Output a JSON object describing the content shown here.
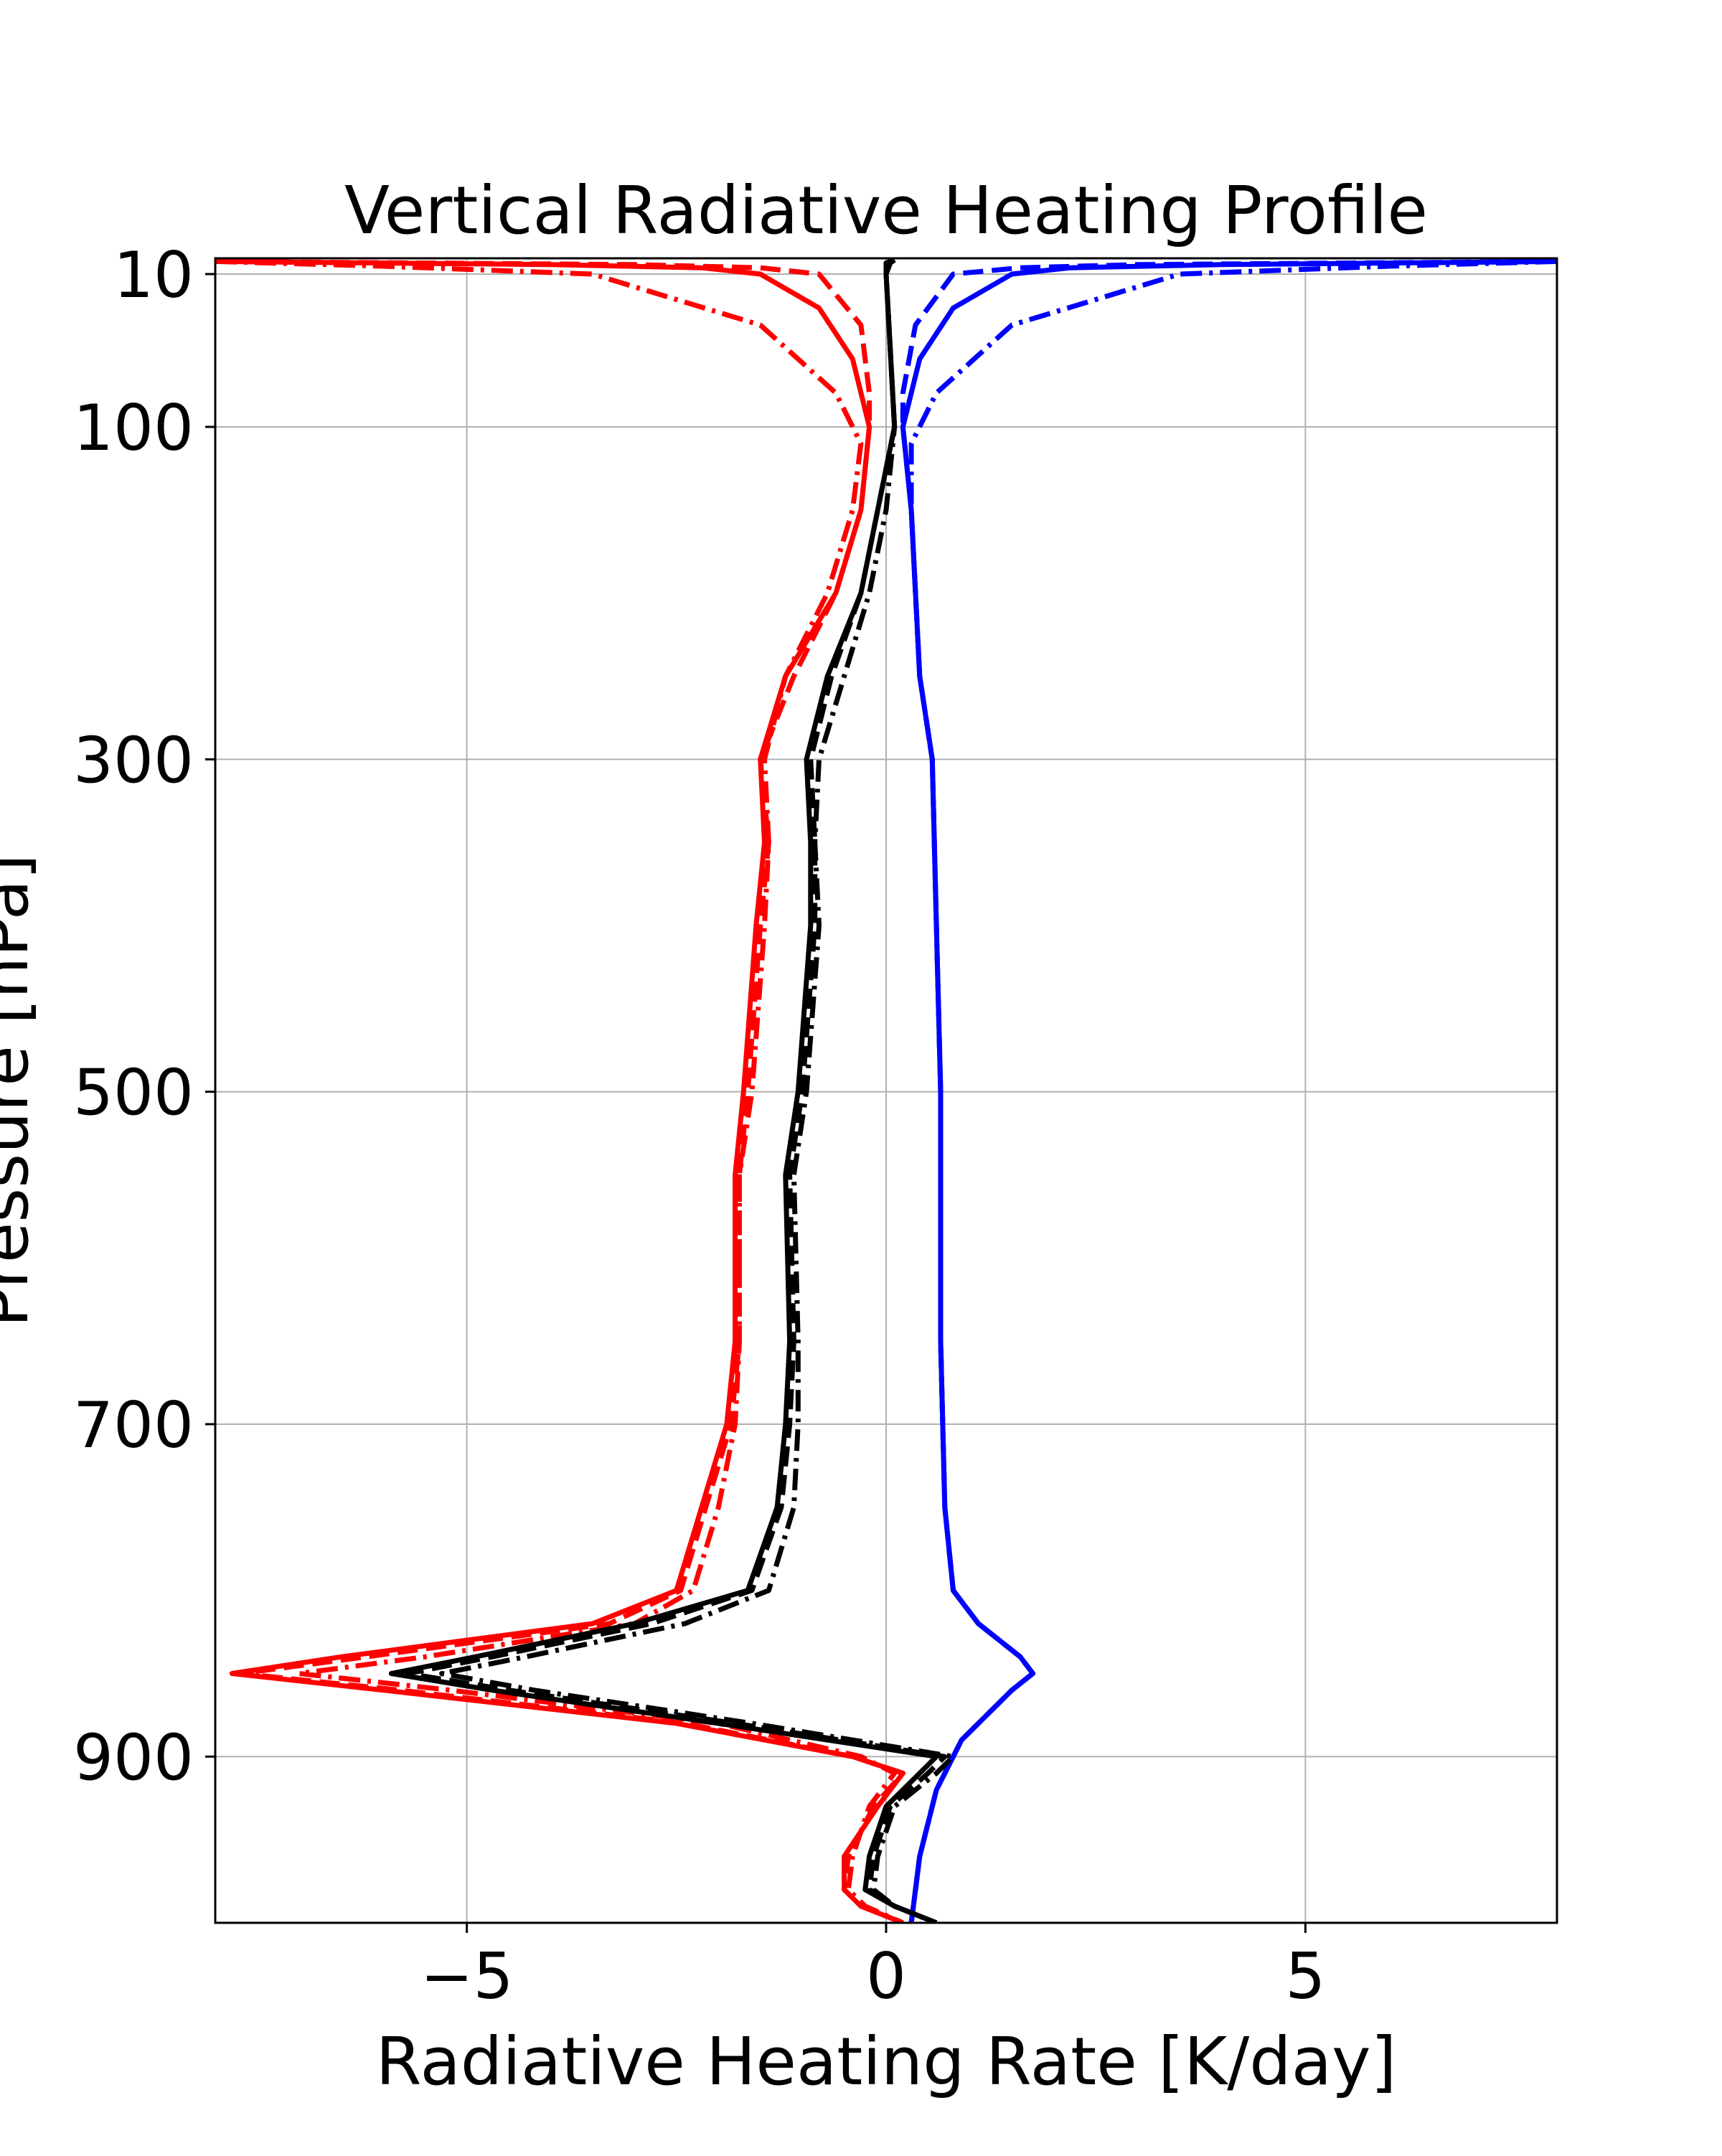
{
  "chart_data": {
    "type": "line",
    "title": "Vertical Radiative Heating Profile",
    "xlabel": "Radiative Heating Rate [K/day]",
    "ylabel": "Pressure [hPa]",
    "xlim": [
      -8,
      8
    ],
    "ylim": [
      1000,
      0
    ],
    "xticks": [
      -5,
      0,
      5
    ],
    "xtick_labels": [
      "−5",
      "0",
      "5"
    ],
    "yticks": [
      10,
      100,
      300,
      500,
      700,
      900
    ],
    "ytick_labels": [
      "10",
      "100",
      "300",
      "500",
      "700",
      "900"
    ],
    "y_axis_scale": "non-uniform (10 and 100 expanded near top; 100-1000 linear)",
    "grid": true,
    "legend": "none",
    "colors": {
      "red": "#ff0000",
      "blue": "#0000ff",
      "black": "#000000"
    },
    "series": [
      {
        "color": "#ff0000",
        "style": "solid",
        "points": [
          [
            -8,
            2
          ],
          [
            -4,
            4
          ],
          [
            -2.2,
            6
          ],
          [
            -1.5,
            10
          ],
          [
            -0.8,
            30
          ],
          [
            -0.4,
            60
          ],
          [
            -0.2,
            100
          ],
          [
            -0.3,
            150
          ],
          [
            -0.6,
            200
          ],
          [
            -1.2,
            250
          ],
          [
            -1.5,
            300
          ],
          [
            -1.45,
            350
          ],
          [
            -1.55,
            400
          ],
          [
            -1.7,
            500
          ],
          [
            -1.8,
            550
          ],
          [
            -1.8,
            650
          ],
          [
            -1.9,
            700
          ],
          [
            -2.2,
            750
          ],
          [
            -2.5,
            800
          ],
          [
            -3.5,
            820
          ],
          [
            -6.5,
            840
          ],
          [
            -7.8,
            850
          ],
          [
            -6,
            860
          ],
          [
            -2.5,
            880
          ],
          [
            -0.4,
            900
          ],
          [
            0.2,
            910
          ],
          [
            -0.1,
            930
          ],
          [
            -0.5,
            960
          ],
          [
            -0.5,
            980
          ],
          [
            -0.3,
            990
          ],
          [
            0.2,
            1000
          ]
        ]
      },
      {
        "color": "#ff0000",
        "style": "dashed",
        "points": [
          [
            -8,
            2
          ],
          [
            -3,
            4
          ],
          [
            -1.5,
            6
          ],
          [
            -0.8,
            10
          ],
          [
            -0.3,
            40
          ],
          [
            -0.2,
            80
          ],
          [
            -0.2,
            100
          ],
          [
            -0.3,
            150
          ],
          [
            -0.6,
            200
          ],
          [
            -1.1,
            250
          ],
          [
            -1.5,
            300
          ],
          [
            -1.4,
            350
          ],
          [
            -1.5,
            400
          ],
          [
            -1.65,
            500
          ],
          [
            -1.75,
            550
          ],
          [
            -1.75,
            650
          ],
          [
            -1.85,
            700
          ],
          [
            -2.15,
            750
          ],
          [
            -2.45,
            800
          ],
          [
            -3.3,
            820
          ],
          [
            -6.2,
            840
          ],
          [
            -7.7,
            850
          ],
          [
            -5.8,
            860
          ],
          [
            -2.4,
            880
          ],
          [
            -0.4,
            900
          ],
          [
            0.2,
            910
          ],
          [
            -0.15,
            930
          ],
          [
            -0.45,
            960
          ],
          [
            -0.5,
            980
          ],
          [
            -0.3,
            990
          ],
          [
            0.2,
            1000
          ]
        ]
      },
      {
        "color": "#ff0000",
        "style": "dashdot",
        "points": [
          [
            -8,
            2
          ],
          [
            -6,
            5
          ],
          [
            -3.5,
            10
          ],
          [
            -1.5,
            40
          ],
          [
            -0.6,
            80
          ],
          [
            -0.3,
            110
          ],
          [
            -0.4,
            150
          ],
          [
            -0.7,
            200
          ],
          [
            -1.2,
            250
          ],
          [
            -1.45,
            300
          ],
          [
            -1.4,
            350
          ],
          [
            -1.45,
            400
          ],
          [
            -1.6,
            500
          ],
          [
            -1.75,
            550
          ],
          [
            -1.75,
            650
          ],
          [
            -1.8,
            700
          ],
          [
            -2,
            750
          ],
          [
            -2.3,
            800
          ],
          [
            -3,
            820
          ],
          [
            -5.5,
            840
          ],
          [
            -7,
            850
          ],
          [
            -5.2,
            860
          ],
          [
            -2,
            880
          ],
          [
            -0.3,
            900
          ],
          [
            0.1,
            910
          ],
          [
            -0.2,
            930
          ],
          [
            -0.4,
            960
          ],
          [
            -0.45,
            980
          ],
          [
            -0.25,
            990
          ],
          [
            0.2,
            1000
          ]
        ]
      },
      {
        "color": "#0000ff",
        "style": "solid",
        "points": [
          [
            8,
            2
          ],
          [
            4,
            4
          ],
          [
            2.2,
            6
          ],
          [
            1.5,
            10
          ],
          [
            0.8,
            30
          ],
          [
            0.4,
            60
          ],
          [
            0.2,
            100
          ],
          [
            0.3,
            150
          ],
          [
            0.4,
            250
          ],
          [
            0.55,
            300
          ],
          [
            0.6,
            400
          ],
          [
            0.65,
            500
          ],
          [
            0.65,
            650
          ],
          [
            0.7,
            750
          ],
          [
            0.8,
            800
          ],
          [
            1.1,
            820
          ],
          [
            1.6,
            840
          ],
          [
            1.75,
            850
          ],
          [
            1.5,
            860
          ],
          [
            0.9,
            890
          ],
          [
            0.6,
            920
          ],
          [
            0.4,
            960
          ],
          [
            0.3,
            1000
          ]
        ]
      },
      {
        "color": "#0000ff",
        "style": "dashed",
        "points": [
          [
            8,
            2
          ],
          [
            3,
            4
          ],
          [
            1.6,
            6
          ],
          [
            0.8,
            10
          ],
          [
            0.35,
            40
          ],
          [
            0.2,
            80
          ],
          [
            0.2,
            100
          ],
          [
            0.3,
            150
          ],
          [
            0.4,
            250
          ],
          [
            0.55,
            300
          ],
          [
            0.6,
            400
          ],
          [
            0.65,
            500
          ],
          [
            0.65,
            650
          ],
          [
            0.7,
            750
          ],
          [
            0.8,
            800
          ],
          [
            1.1,
            820
          ],
          [
            1.6,
            840
          ],
          [
            1.75,
            850
          ],
          [
            1.5,
            860
          ],
          [
            0.9,
            890
          ],
          [
            0.6,
            920
          ],
          [
            0.4,
            960
          ],
          [
            0.3,
            1000
          ]
        ]
      },
      {
        "color": "#0000ff",
        "style": "dashdot",
        "points": [
          [
            8,
            2
          ],
          [
            6,
            5
          ],
          [
            3.5,
            10
          ],
          [
            1.5,
            40
          ],
          [
            0.6,
            80
          ],
          [
            0.3,
            110
          ],
          [
            0.3,
            150
          ],
          [
            0.4,
            250
          ],
          [
            0.55,
            300
          ],
          [
            0.6,
            400
          ],
          [
            0.65,
            500
          ],
          [
            0.65,
            650
          ],
          [
            0.7,
            750
          ],
          [
            0.8,
            800
          ],
          [
            1.1,
            820
          ],
          [
            1.6,
            840
          ],
          [
            1.75,
            850
          ],
          [
            1.5,
            860
          ],
          [
            0.9,
            890
          ],
          [
            0.6,
            920
          ],
          [
            0.4,
            960
          ],
          [
            0.3,
            1000
          ]
        ]
      },
      {
        "color": "#000000",
        "style": "solid",
        "points": [
          [
            0.1,
            1
          ],
          [
            0,
            3
          ],
          [
            0,
            10
          ],
          [
            0.1,
            100
          ],
          [
            -0.1,
            150
          ],
          [
            -0.3,
            200
          ],
          [
            -0.7,
            250
          ],
          [
            -0.95,
            300
          ],
          [
            -0.9,
            350
          ],
          [
            -0.9,
            400
          ],
          [
            -1.05,
            500
          ],
          [
            -1.2,
            550
          ],
          [
            -1.15,
            650
          ],
          [
            -1.2,
            700
          ],
          [
            -1.3,
            750
          ],
          [
            -1.65,
            800
          ],
          [
            -3,
            820
          ],
          [
            -4.9,
            840
          ],
          [
            -5.9,
            850
          ],
          [
            -4.7,
            860
          ],
          [
            -2,
            880
          ],
          [
            0.6,
            900
          ],
          [
            0.4,
            910
          ],
          [
            0,
            930
          ],
          [
            -0.2,
            960
          ],
          [
            -0.25,
            980
          ],
          [
            0.1,
            990
          ],
          [
            0.6,
            1000
          ]
        ]
      },
      {
        "color": "#000000",
        "style": "dashed",
        "points": [
          [
            0.1,
            1
          ],
          [
            0,
            3
          ],
          [
            0,
            10
          ],
          [
            0.1,
            100
          ],
          [
            -0.1,
            150
          ],
          [
            -0.3,
            200
          ],
          [
            -0.65,
            250
          ],
          [
            -0.9,
            300
          ],
          [
            -0.85,
            350
          ],
          [
            -0.85,
            400
          ],
          [
            -1,
            500
          ],
          [
            -1.15,
            550
          ],
          [
            -1.1,
            650
          ],
          [
            -1.15,
            700
          ],
          [
            -1.25,
            750
          ],
          [
            -1.6,
            800
          ],
          [
            -2.8,
            820
          ],
          [
            -4.7,
            840
          ],
          [
            -5.7,
            850
          ],
          [
            -4.5,
            860
          ],
          [
            -1.8,
            880
          ],
          [
            0.7,
            900
          ],
          [
            0.5,
            910
          ],
          [
            0.05,
            930
          ],
          [
            -0.15,
            960
          ],
          [
            -0.2,
            980
          ],
          [
            0.1,
            990
          ],
          [
            0.6,
            1000
          ]
        ]
      },
      {
        "color": "#000000",
        "style": "dashdot",
        "points": [
          [
            0.1,
            1
          ],
          [
            0.05,
            3
          ],
          [
            0,
            10
          ],
          [
            0.1,
            100
          ],
          [
            0,
            150
          ],
          [
            -0.2,
            200
          ],
          [
            -0.5,
            250
          ],
          [
            -0.8,
            300
          ],
          [
            -0.85,
            350
          ],
          [
            -0.8,
            400
          ],
          [
            -0.95,
            500
          ],
          [
            -1.1,
            550
          ],
          [
            -1.05,
            650
          ],
          [
            -1.05,
            700
          ],
          [
            -1.1,
            750
          ],
          [
            -1.4,
            800
          ],
          [
            -2.4,
            820
          ],
          [
            -4.3,
            840
          ],
          [
            -5.3,
            850
          ],
          [
            -4.2,
            860
          ],
          [
            -1.6,
            880
          ],
          [
            0.8,
            900
          ],
          [
            0.6,
            910
          ],
          [
            0.1,
            930
          ],
          [
            -0.1,
            960
          ],
          [
            -0.15,
            980
          ],
          [
            0.1,
            990
          ],
          [
            0.6,
            1000
          ]
        ]
      }
    ]
  }
}
